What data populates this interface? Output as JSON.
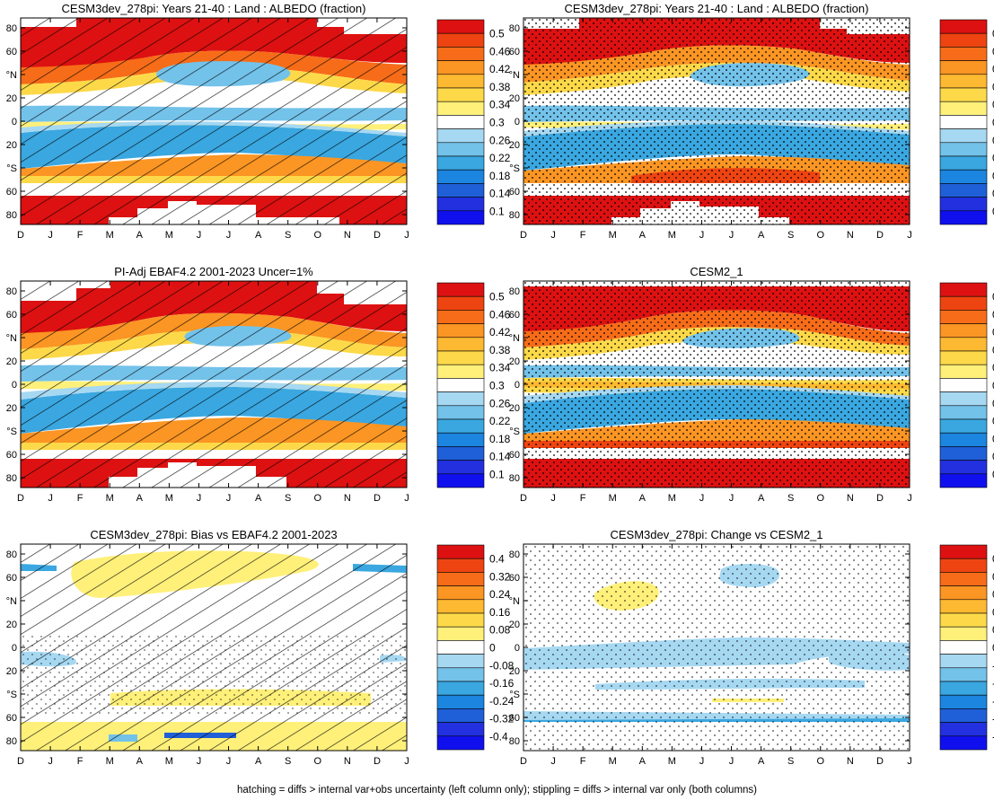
{
  "months": [
    "D",
    "J",
    "F",
    "M",
    "A",
    "M",
    "J",
    "J",
    "A",
    "S",
    "O",
    "N",
    "D",
    "J"
  ],
  "lat_tick_labels": [
    "80",
    "60",
    "°N",
    "20",
    "0",
    "20",
    "°S",
    "60",
    "80"
  ],
  "footer": "hatching = diffs > internal var+obs uncertainty (left column only); stippling = diffs > internal var only (both columns)",
  "colorbars": {
    "main": {
      "labels": [
        "0.5",
        "0.46",
        "0.42",
        "0.38",
        "0.34",
        "0.3",
        "0.26",
        "0.22",
        "0.18",
        "0.14",
        "0.1"
      ],
      "colors": [
        "#dd1111",
        "#ee4411",
        "#f76c18",
        "#fb9523",
        "#fdb931",
        "#fdd949",
        "#fff07a",
        "#ffffff",
        "#a6d8f2",
        "#73c2ea",
        "#3aa7e0",
        "#1b85df",
        "#1f5fd8",
        "#2230df",
        "#1010ee"
      ]
    },
    "diff": {
      "labels": [
        "0.4",
        "0.32",
        "0.24",
        "0.16",
        "0.08",
        "0",
        "-0.08",
        "-0.16",
        "-0.24",
        "-0.32",
        "-0.4"
      ],
      "colors": [
        "#dd1111",
        "#ee4411",
        "#f76c18",
        "#fb9523",
        "#fdb931",
        "#fdd949",
        "#fff07a",
        "#ffffff",
        "#a6d8f2",
        "#73c2ea",
        "#3aa7e0",
        "#1b85df",
        "#1f5fd8",
        "#2230df",
        "#1010ee"
      ]
    }
  },
  "chart_data": [
    {
      "type": "heatmap",
      "title": "CESM3dev_278pi: Years 21-40 : Land : ALBEDO (fraction)",
      "x": [
        "D",
        "J",
        "F",
        "M",
        "A",
        "M",
        "J",
        "J",
        "A",
        "S",
        "O",
        "N",
        "D",
        "J"
      ],
      "y_labels": [
        "80",
        "60",
        "°N",
        "20",
        "0",
        "20",
        "°S",
        "60",
        "80"
      ],
      "colorbar": "main",
      "hatching": true,
      "stippling": false,
      "bands": [
        {
          "lat_from": 90,
          "lat_to": 60,
          "value": 0.5
        },
        {
          "lat_from": 60,
          "lat_to": 50,
          "value": 0.42
        },
        {
          "lat_from": 45,
          "lat_to": 30,
          "value": 0.22,
          "note": "Mar-Sep"
        },
        {
          "lat_from": 15,
          "lat_to": 5,
          "value": 0.24
        },
        {
          "lat_from": -10,
          "lat_to": -40,
          "value": 0.24
        },
        {
          "lat_from": -40,
          "lat_to": -55,
          "value": 0.4
        },
        {
          "lat_from": -60,
          "lat_to": -90,
          "value": 0.5
        }
      ]
    },
    {
      "type": "heatmap",
      "title": "CESM3dev_278pi: Years 21-40 : Land : ALBEDO (fraction)",
      "x": [
        "D",
        "J",
        "F",
        "M",
        "A",
        "M",
        "J",
        "J",
        "A",
        "S",
        "O",
        "N",
        "D",
        "J"
      ],
      "y_labels": [
        "80",
        "60",
        "°N",
        "20",
        "0",
        "20",
        "°S",
        "60",
        "80"
      ],
      "colorbar": "main",
      "hatching": false,
      "stippling": true,
      "bands": [
        {
          "lat_from": 90,
          "lat_to": 60,
          "value": 0.5
        },
        {
          "lat_from": 60,
          "lat_to": 50,
          "value": 0.42
        },
        {
          "lat_from": 45,
          "lat_to": 30,
          "value": 0.22
        },
        {
          "lat_from": 15,
          "lat_to": 5,
          "value": 0.24
        },
        {
          "lat_from": -10,
          "lat_to": -40,
          "value": 0.24
        },
        {
          "lat_from": -40,
          "lat_to": -55,
          "value": 0.4
        },
        {
          "lat_from": -60,
          "lat_to": -90,
          "value": 0.5
        }
      ]
    },
    {
      "type": "heatmap",
      "title": "PI-Adj EBAF4.2 2001-2023 Uncer=1%",
      "x": [
        "D",
        "J",
        "F",
        "M",
        "A",
        "M",
        "J",
        "J",
        "A",
        "S",
        "O",
        "N",
        "D",
        "J"
      ],
      "y_labels": [
        "80",
        "60",
        "°N",
        "20",
        "0",
        "20",
        "°S",
        "60",
        "80"
      ],
      "colorbar": "main",
      "hatching": true,
      "stippling": false,
      "bands": [
        {
          "lat_from": 90,
          "lat_to": 60,
          "value": 0.5
        },
        {
          "lat_from": 60,
          "lat_to": 50,
          "value": 0.42
        },
        {
          "lat_from": 45,
          "lat_to": 30,
          "value": 0.24
        },
        {
          "lat_from": 15,
          "lat_to": 5,
          "value": 0.24
        },
        {
          "lat_from": -15,
          "lat_to": -40,
          "value": 0.24
        },
        {
          "lat_from": -40,
          "lat_to": -55,
          "value": 0.4
        },
        {
          "lat_from": -60,
          "lat_to": -90,
          "value": 0.5
        }
      ]
    },
    {
      "type": "heatmap",
      "title": "CESM2_1",
      "x": [
        "D",
        "J",
        "F",
        "M",
        "A",
        "M",
        "J",
        "J",
        "A",
        "S",
        "O",
        "N",
        "D",
        "J"
      ],
      "y_labels": [
        "80",
        "60",
        "°N",
        "20",
        "0",
        "20",
        "°S",
        "60",
        "80"
      ],
      "colorbar": "main",
      "hatching": false,
      "stippling": true,
      "bands": [
        {
          "lat_from": 90,
          "lat_to": 60,
          "value": 0.5
        },
        {
          "lat_from": 60,
          "lat_to": 50,
          "value": 0.42
        },
        {
          "lat_from": 45,
          "lat_to": 30,
          "value": 0.26
        },
        {
          "lat_from": 15,
          "lat_to": 5,
          "value": 0.24
        },
        {
          "lat_from": -10,
          "lat_to": -40,
          "value": 0.24
        },
        {
          "lat_from": -40,
          "lat_to": -55,
          "value": 0.4
        },
        {
          "lat_from": -60,
          "lat_to": -90,
          "value": 0.5
        }
      ]
    },
    {
      "type": "heatmap",
      "title": "CESM3dev_278pi: Bias vs EBAF4.2 2001-2023",
      "x": [
        "D",
        "J",
        "F",
        "M",
        "A",
        "M",
        "J",
        "J",
        "A",
        "S",
        "O",
        "N",
        "D",
        "J"
      ],
      "y_labels": [
        "80",
        "60",
        "°N",
        "20",
        "0",
        "20",
        "°S",
        "60",
        "80"
      ],
      "colorbar": "diff",
      "hatching": true,
      "stippling": true,
      "bands": [
        {
          "lat_from": 70,
          "lat_to": 40,
          "value": 0.04
        },
        {
          "lat_from": -10,
          "lat_to": -15,
          "value": -0.04
        },
        {
          "lat_from": -45,
          "lat_to": -55,
          "value": 0.04
        },
        {
          "lat_from": -60,
          "lat_to": -90,
          "value": 0.04
        }
      ]
    },
    {
      "type": "heatmap",
      "title": "CESM3dev_278pi: Change vs CESM2_1",
      "x": [
        "D",
        "J",
        "F",
        "M",
        "A",
        "M",
        "J",
        "J",
        "A",
        "S",
        "O",
        "N",
        "D",
        "J"
      ],
      "y_labels": [
        "80",
        "60",
        "°N",
        "20",
        "0",
        "20",
        "°S",
        "60",
        "80"
      ],
      "colorbar": "diff",
      "hatching": false,
      "stippling": true,
      "bands": [
        {
          "lat_from": 65,
          "lat_to": 55,
          "value": -0.04
        },
        {
          "lat_from": 50,
          "lat_to": 35,
          "value": 0.04
        },
        {
          "lat_from": 0,
          "lat_to": -20,
          "value": -0.04
        },
        {
          "lat_from": -30,
          "lat_to": -35,
          "value": -0.04
        },
        {
          "lat_from": -55,
          "lat_to": -60,
          "value": -0.04
        }
      ]
    }
  ]
}
